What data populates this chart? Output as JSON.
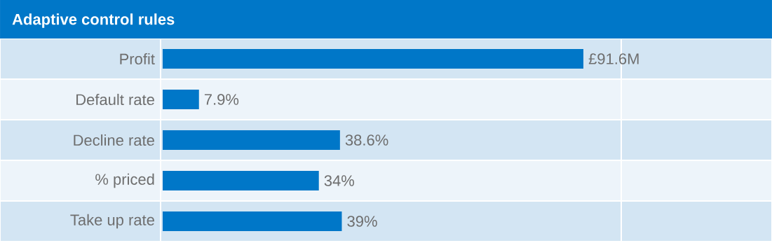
{
  "chart_data": {
    "type": "bar",
    "orientation": "horizontal",
    "title": "Adaptive control rules",
    "categories": [
      "Profit",
      "Default rate",
      "Decline rate",
      "% priced",
      "Take up rate"
    ],
    "values": [
      91.6,
      7.9,
      38.6,
      34,
      39
    ],
    "value_labels": [
      "£91.6M",
      "7.9%",
      "38.6%",
      "34%",
      "39%"
    ],
    "tick_labels": "y",
    "color": "#0077c8"
  }
}
